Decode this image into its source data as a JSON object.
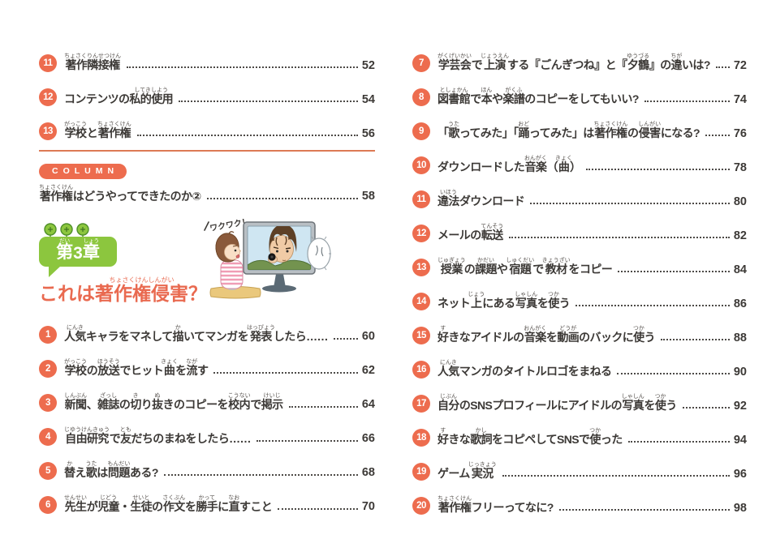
{
  "accent": {
    "orange": "#ed6c4e",
    "green": "#8cc63e",
    "title_orange": "#e96a50",
    "text": "#3c3936"
  },
  "toc": {
    "left_top": [
      {
        "num": "11",
        "page": "52",
        "segments": [
          {
            "t": "著作隣接権",
            "r": "ちょさくりんせつけん"
          }
        ]
      },
      {
        "num": "12",
        "page": "54",
        "segments": [
          {
            "t": "コンテンツの"
          },
          {
            "t": "私的使用",
            "r": "してきしよう"
          }
        ]
      },
      {
        "num": "13",
        "page": "56",
        "segments": [
          {
            "t": "学校",
            "r": "がっこう"
          },
          {
            "t": "と"
          },
          {
            "t": "著作権",
            "r": "ちょさくけん"
          }
        ]
      }
    ],
    "column": {
      "label": "COLUMN",
      "page": "58",
      "segments": [
        {
          "t": "著作権",
          "r": "ちょさくけん"
        },
        {
          "t": "はどうやってできたのか②"
        }
      ]
    },
    "chapter": {
      "badge_segments": [
        {
          "t": "第",
          "r": "だい"
        },
        {
          "t": "3"
        },
        {
          "t": "章",
          "r": "しょう"
        }
      ],
      "title_segments": [
        {
          "t": "これは"
        },
        {
          "t": "著作権侵害",
          "r": "ちょさくけんしんがい"
        },
        {
          "t": "？"
        }
      ]
    },
    "left_bottom": [
      {
        "num": "1",
        "page": "60",
        "segments": [
          {
            "t": "人気",
            "r": "にんき"
          },
          {
            "t": "キャラをマネして"
          },
          {
            "t": "描",
            "r": "か"
          },
          {
            "t": "いてマンガを"
          },
          {
            "t": "発表",
            "r": "はっぴょう"
          },
          {
            "t": "したら……"
          }
        ]
      },
      {
        "num": "2",
        "page": "62",
        "segments": [
          {
            "t": "学校",
            "r": "がっこう"
          },
          {
            "t": "の"
          },
          {
            "t": "放送",
            "r": "ほうそう"
          },
          {
            "t": "でヒット"
          },
          {
            "t": "曲",
            "r": "きょく"
          },
          {
            "t": "を"
          },
          {
            "t": "流",
            "r": "なが"
          },
          {
            "t": "す"
          }
        ]
      },
      {
        "num": "3",
        "page": "64",
        "segments": [
          {
            "t": "新聞",
            "r": "しんぶん"
          },
          {
            "t": "、"
          },
          {
            "t": "雑誌",
            "r": "ざっし"
          },
          {
            "t": "の"
          },
          {
            "t": "切",
            "r": "き"
          },
          {
            "t": "り"
          },
          {
            "t": "抜",
            "r": "ぬ"
          },
          {
            "t": "きのコピーを"
          },
          {
            "t": "校内",
            "r": "こうない"
          },
          {
            "t": "で"
          },
          {
            "t": "掲示",
            "r": "けいじ"
          }
        ]
      },
      {
        "num": "4",
        "page": "66",
        "segments": [
          {
            "t": "自由研究",
            "r": "じゆうけんきゅう"
          },
          {
            "t": "で"
          },
          {
            "t": "友",
            "r": "とも"
          },
          {
            "t": "だちのまねをしたら……"
          }
        ]
      },
      {
        "num": "5",
        "page": "68",
        "segments": [
          {
            "t": "替",
            "r": "か"
          },
          {
            "t": "え"
          },
          {
            "t": "歌",
            "r": "うた"
          },
          {
            "t": "は"
          },
          {
            "t": "問題",
            "r": "もんだい"
          },
          {
            "t": "ある?"
          }
        ]
      },
      {
        "num": "6",
        "page": "70",
        "segments": [
          {
            "t": "先生",
            "r": "せんせい"
          },
          {
            "t": "が"
          },
          {
            "t": "児童",
            "r": "じどう"
          },
          {
            "t": "・"
          },
          {
            "t": "生徒",
            "r": "せいと"
          },
          {
            "t": "の"
          },
          {
            "t": "作文",
            "r": "さくぶん"
          },
          {
            "t": "を"
          },
          {
            "t": "勝手",
            "r": "かって"
          },
          {
            "t": "に"
          },
          {
            "t": "直",
            "r": "なお"
          },
          {
            "t": "すこと"
          }
        ]
      }
    ],
    "right": [
      {
        "num": "7",
        "page": "72",
        "segments": [
          {
            "t": "学芸会",
            "r": "がくげいかい"
          },
          {
            "t": "で"
          },
          {
            "t": "上演",
            "r": "じょうえん"
          },
          {
            "t": "する『ごんぎつね』と『"
          },
          {
            "t": "夕鶴",
            "r": "ゆうづる"
          },
          {
            "t": "』の"
          },
          {
            "t": "違",
            "r": "ちが"
          },
          {
            "t": "いは?"
          }
        ]
      },
      {
        "num": "8",
        "page": "74",
        "segments": [
          {
            "t": "図書館",
            "r": "としょかん"
          },
          {
            "t": "で"
          },
          {
            "t": "本",
            "r": "ほん"
          },
          {
            "t": "や"
          },
          {
            "t": "楽譜",
            "r": "がくふ"
          },
          {
            "t": "のコピーをしてもいい?"
          }
        ]
      },
      {
        "num": "9",
        "page": "76",
        "segments": [
          {
            "t": "「"
          },
          {
            "t": "歌",
            "r": "うた"
          },
          {
            "t": "ってみた」「"
          },
          {
            "t": "踊",
            "r": "おど"
          },
          {
            "t": "ってみた」は"
          },
          {
            "t": "著作権",
            "r": "ちょさくけん"
          },
          {
            "t": "の"
          },
          {
            "t": "侵害",
            "r": "しんがい"
          },
          {
            "t": "になる?"
          }
        ]
      },
      {
        "num": "10",
        "page": "78",
        "segments": [
          {
            "t": "ダウンロードした"
          },
          {
            "t": "音楽",
            "r": "おんがく"
          },
          {
            "t": "（"
          },
          {
            "t": "曲",
            "r": "きょく"
          },
          {
            "t": "）"
          }
        ]
      },
      {
        "num": "11",
        "page": "80",
        "segments": [
          {
            "t": "違法",
            "r": "いほう"
          },
          {
            "t": "ダウンロード"
          }
        ]
      },
      {
        "num": "12",
        "page": "82",
        "segments": [
          {
            "t": "メールの"
          },
          {
            "t": "転送",
            "r": "てんそう"
          }
        ]
      },
      {
        "num": "13",
        "page": "84",
        "segments": [
          {
            "t": "授業",
            "r": "じゅぎょう"
          },
          {
            "t": "の"
          },
          {
            "t": "課題",
            "r": "かだい"
          },
          {
            "t": "や"
          },
          {
            "t": "宿題",
            "r": "しゅくだい"
          },
          {
            "t": "で"
          },
          {
            "t": "教材",
            "r": "きょうざい"
          },
          {
            "t": "をコピー"
          }
        ]
      },
      {
        "num": "14",
        "page": "86",
        "segments": [
          {
            "t": "ネット"
          },
          {
            "t": "上",
            "r": "じょう"
          },
          {
            "t": "にある"
          },
          {
            "t": "写真",
            "r": "しゃしん"
          },
          {
            "t": "を"
          },
          {
            "t": "使",
            "r": "つか"
          },
          {
            "t": "う"
          }
        ]
      },
      {
        "num": "15",
        "page": "88",
        "segments": [
          {
            "t": "好",
            "r": "す"
          },
          {
            "t": "きなアイドルの"
          },
          {
            "t": "音楽",
            "r": "おんがく"
          },
          {
            "t": "を"
          },
          {
            "t": "動画",
            "r": "どうが"
          },
          {
            "t": "のバックに"
          },
          {
            "t": "使",
            "r": "つか"
          },
          {
            "t": "う"
          }
        ]
      },
      {
        "num": "16",
        "page": "90",
        "segments": [
          {
            "t": "人気",
            "r": "にんき"
          },
          {
            "t": "マンガのタイトルロゴをまねる"
          }
        ]
      },
      {
        "num": "17",
        "page": "92",
        "segments": [
          {
            "t": "自分",
            "r": "じぶん"
          },
          {
            "t": "のSNSプロフィールにアイドルの"
          },
          {
            "t": "写真",
            "r": "しゃしん"
          },
          {
            "t": "を"
          },
          {
            "t": "使",
            "r": "つか"
          },
          {
            "t": "う"
          }
        ]
      },
      {
        "num": "18",
        "page": "94",
        "segments": [
          {
            "t": "好",
            "r": "す"
          },
          {
            "t": "きな"
          },
          {
            "t": "歌詞",
            "r": "かし"
          },
          {
            "t": "をコピペしてSNSで"
          },
          {
            "t": "使",
            "r": "つか"
          },
          {
            "t": "った"
          }
        ]
      },
      {
        "num": "19",
        "page": "96",
        "segments": [
          {
            "t": "ゲーム"
          },
          {
            "t": "実況",
            "r": "じっきょう"
          }
        ]
      },
      {
        "num": "20",
        "page": "98",
        "segments": [
          {
            "t": "著作権",
            "r": "ちょさくけん"
          },
          {
            "t": "フリーってなに?"
          }
        ]
      }
    ]
  },
  "illustration": {
    "excited_text": "ワクワク！"
  }
}
